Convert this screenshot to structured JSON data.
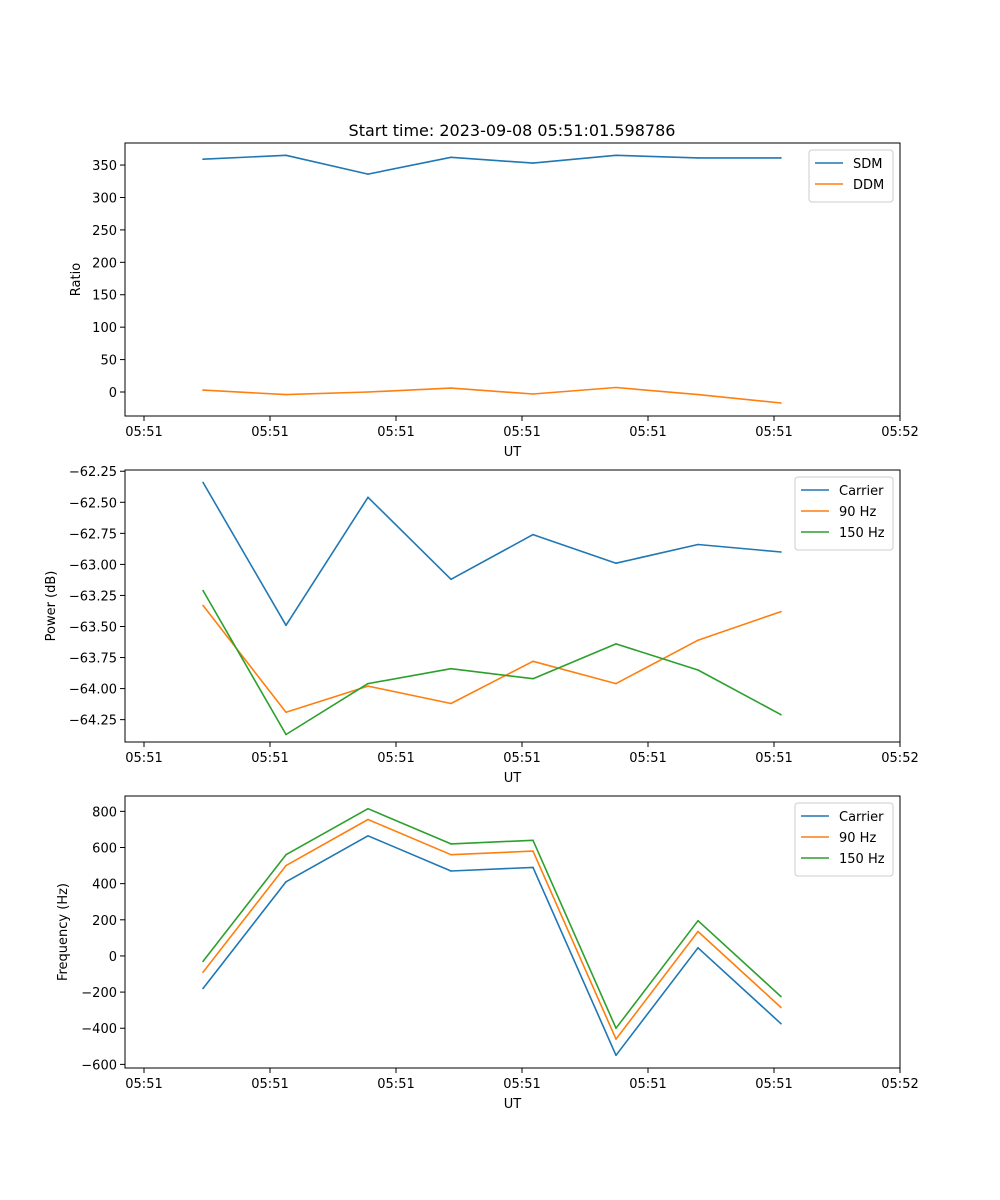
{
  "figure": {
    "title": "Start time: 2023-09-08 05:51:01.598786"
  },
  "chart_data": [
    {
      "type": "line",
      "title": "Start time: 2023-09-08 05:51:01.598786",
      "xlabel": "UT",
      "ylabel": "Ratio",
      "xlim": [
        -0.23,
        8.98
      ],
      "x_ticks": [
        0,
        3,
        6,
        9
      ],
      "x_ticks_positions": [
        -0.23,
        0.82,
        2.36,
        3.9,
        5.43,
        6.98,
        8.52,
        8.98
      ],
      "ylim": [
        -37,
        384
      ],
      "y_ticks": [
        0,
        50,
        100,
        150,
        200,
        250,
        300,
        350
      ],
      "y_tick_labels": [
        "0",
        "50",
        "100",
        "150",
        "200",
        "250",
        "300",
        "350"
      ],
      "x": [
        0.5,
        1.5,
        2.5,
        3.5,
        4.5,
        5.5,
        6.5,
        7.5
      ],
      "legend_loc": "upper right",
      "series": [
        {
          "name": "SDM",
          "color": "#1f77b4",
          "values": [
            359,
            365,
            336,
            362,
            353,
            365,
            361,
            361
          ]
        },
        {
          "name": "DDM",
          "color": "#ff7f0e",
          "values": [
            3,
            -4,
            0,
            6,
            -3,
            7,
            -4,
            -17
          ]
        }
      ]
    },
    {
      "type": "line",
      "xlabel": "UT",
      "ylabel": "Power (dB)",
      "xlim": [
        -0.23,
        8.98
      ],
      "ylim": [
        -64.43,
        -62.24
      ],
      "y_ticks": [
        -64.25,
        -64.0,
        -63.75,
        -63.5,
        -63.25,
        -63.0,
        -62.75,
        -62.5,
        -62.25
      ],
      "y_tick_labels": [
        "−64.25",
        "−64.00",
        "−63.75",
        "−63.50",
        "−63.25",
        "−63.00",
        "−62.75",
        "−62.50",
        "−62.25"
      ],
      "x": [
        0.5,
        1.5,
        2.5,
        3.5,
        4.5,
        5.5,
        6.5,
        7.5
      ],
      "legend_loc": "upper right",
      "series": [
        {
          "name": "Carrier",
          "color": "#1f77b4",
          "values": [
            -62.34,
            -63.49,
            -62.46,
            -63.12,
            -62.76,
            -62.99,
            -62.84,
            -62.9
          ]
        },
        {
          "name": "90 Hz",
          "color": "#ff7f0e",
          "values": [
            -63.33,
            -64.19,
            -63.98,
            -64.12,
            -63.78,
            -63.96,
            -63.61,
            -63.38
          ]
        },
        {
          "name": "150 Hz",
          "color": "#2ca02c",
          "values": [
            -63.21,
            -64.37,
            -63.96,
            -63.84,
            -63.92,
            -63.64,
            -63.85,
            -64.21
          ]
        }
      ]
    },
    {
      "type": "line",
      "xlabel": "UT",
      "ylabel": "Frequency (Hz)",
      "xlim": [
        -0.23,
        8.98
      ],
      "ylim": [
        -620,
        885
      ],
      "y_ticks": [
        -600,
        -400,
        -200,
        0,
        200,
        400,
        600,
        800
      ],
      "y_tick_labels": [
        "−600",
        "−400",
        "−200",
        "0",
        "200",
        "400",
        "600",
        "800"
      ],
      "x": [
        0.5,
        1.5,
        2.5,
        3.5,
        4.5,
        5.5,
        6.5,
        7.5
      ],
      "legend_loc": "upper right",
      "series": [
        {
          "name": "Carrier",
          "color": "#1f77b4",
          "values": [
            -180,
            410,
            665,
            470,
            490,
            -550,
            45,
            -375
          ]
        },
        {
          "name": "90 Hz",
          "color": "#ff7f0e",
          "values": [
            -90,
            500,
            755,
            560,
            580,
            -460,
            135,
            -285
          ]
        },
        {
          "name": "150 Hz",
          "color": "#2ca02c",
          "values": [
            -30,
            560,
            815,
            620,
            640,
            -400,
            195,
            -225
          ]
        }
      ]
    }
  ],
  "x_tick_labels": [
    "05:51",
    "05:51",
    "05:51",
    "05:51",
    "05:51",
    "05:51",
    "05:52"
  ]
}
